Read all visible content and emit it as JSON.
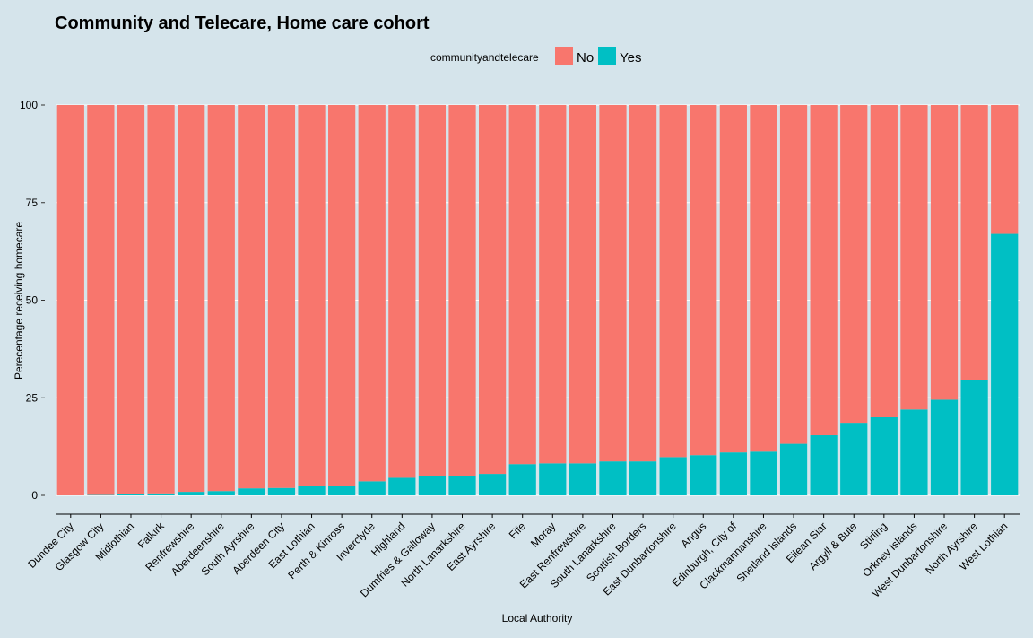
{
  "chart_data": {
    "type": "bar",
    "stacked": true,
    "title": "Community and Telecare, Home care cohort",
    "xlabel": "Local Authority",
    "ylabel": "Perecentage receiving homecare",
    "ylim": [
      0,
      100
    ],
    "yticks": [
      0,
      25,
      50,
      75,
      100
    ],
    "grid": true,
    "legend": {
      "title": "communityandtelecare",
      "position": "top"
    },
    "categories": [
      "Dundee City",
      "Glasgow City",
      "Midlothian",
      "Falkirk",
      "Renfrewshire",
      "Aberdeenshire",
      "South Ayrshire",
      "Aberdeen City",
      "East Lothian",
      "Perth & Kinross",
      "Inverclyde",
      "Highland",
      "Dumfries & Galloway",
      "North Lanarkshire",
      "East Ayrshire",
      "Fife",
      "Moray",
      "East Renfrewshire",
      "South Lanarkshire",
      "Scottish Borders",
      "East Dunbartonshire",
      "Angus",
      "Edinburgh, City of",
      "Clackmannanshire",
      "Shetland Islands",
      "Eilean Siar",
      "Argyll & Bute",
      "Stirling",
      "Orkney Islands",
      "West Dunbartonshire",
      "North Ayrshire",
      "West Lothian"
    ],
    "series": [
      {
        "name": "No",
        "color": "#f8766d",
        "values": [
          100,
          99.9,
          99.6,
          99.5,
          99.1,
          98.9,
          98.2,
          98.1,
          97.7,
          97.7,
          96.4,
          95.5,
          95.0,
          95.0,
          94.5,
          92.0,
          91.8,
          91.8,
          91.3,
          91.3,
          90.2,
          89.7,
          89.0,
          88.8,
          86.8,
          84.6,
          81.4,
          80.0,
          78.0,
          75.5,
          70.4,
          33.0
        ]
      },
      {
        "name": "Yes",
        "color": "#00bfc4",
        "values": [
          0,
          0.1,
          0.4,
          0.5,
          0.9,
          1.1,
          1.8,
          1.9,
          2.3,
          2.3,
          3.6,
          4.5,
          5.0,
          5.0,
          5.5,
          8.0,
          8.2,
          8.2,
          8.7,
          8.7,
          9.8,
          10.3,
          11.0,
          11.2,
          13.2,
          15.4,
          18.6,
          20.0,
          22.0,
          24.5,
          29.6,
          67.0
        ]
      }
    ]
  }
}
